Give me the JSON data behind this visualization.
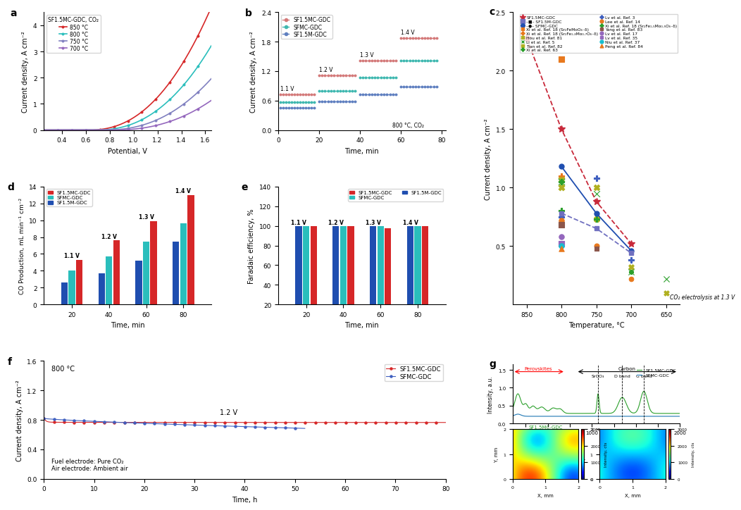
{
  "panel_a": {
    "title": "a",
    "xlabel": "Potential, V",
    "ylabel": "Current density, A cm⁻²",
    "legend_title": "SF1.5MC-GDC, CO₂",
    "temperatures": [
      "850 °C",
      "800 °C",
      "750 °C",
      "700 °C"
    ],
    "colors": [
      "#d62728",
      "#2abebc",
      "#8080c0",
      "#9467bd"
    ],
    "xlim": [
      0.25,
      1.65
    ],
    "ylim": [
      0,
      4.5
    ],
    "xticks": [
      0.4,
      0.6,
      0.8,
      1.0,
      1.2,
      1.4,
      1.6
    ],
    "yticks": [
      0,
      1,
      2,
      3,
      4
    ]
  },
  "panel_b": {
    "title": "b",
    "xlabel": "Time, min",
    "ylabel": "Current density, A cm⁻²",
    "annotation": "800 °C, CO₂",
    "series": [
      "SF1.5MC-GDC",
      "SFMC-GDC",
      "SF1.5M-GDC"
    ],
    "colors": [
      "#d47a7a",
      "#40b8b0",
      "#6080c0"
    ],
    "voltage_labels": [
      "1.1 V",
      "1.2 V",
      "1.3 V",
      "1.4 V"
    ],
    "vals_sf15mc": [
      0.73,
      1.12,
      1.42,
      1.88
    ],
    "vals_sfmc": [
      0.57,
      0.8,
      1.07,
      1.42
    ],
    "vals_sf15m": [
      0.45,
      0.58,
      0.73,
      0.88
    ],
    "xlim": [
      0,
      82
    ],
    "ylim": [
      0,
      2.4
    ],
    "yticks": [
      0.0,
      0.6,
      1.2,
      1.8,
      2.4
    ]
  },
  "panel_c": {
    "title": "c",
    "xlabel": "Temperature, °C",
    "ylabel": "Current density, A cm⁻²",
    "annotation": "CO₂ electrolysis at 1.3 V",
    "xlim": [
      870,
      630
    ],
    "ylim": [
      0.0,
      2.5
    ],
    "xticks": [
      850,
      800,
      750,
      700,
      650
    ],
    "yticks": [
      0.5,
      1.0,
      1.5,
      2.0,
      2.5
    ]
  },
  "panel_d": {
    "title": "d",
    "xlabel": "Time, min",
    "ylabel": "CO Production, mL min⁻¹ cm⁻²",
    "series": [
      "SF1.5MC-GDC",
      "SFMC-GDC",
      "SF1.5M-GDC"
    ],
    "colors": [
      "#d62728",
      "#2abebc",
      "#1f4eb0"
    ],
    "xlim": [
      5,
      95
    ],
    "ylim": [
      0,
      14
    ],
    "yticks": [
      0,
      2,
      4,
      6,
      8,
      10,
      12,
      14
    ],
    "time_groups": [
      20,
      40,
      60,
      80
    ],
    "voltage_labels": [
      "1.1 V",
      "1.2 V",
      "1.3 V",
      "1.4 V"
    ],
    "values": {
      "20": [
        5.3,
        4.0,
        2.6
      ],
      "40": [
        7.6,
        5.7,
        3.7
      ],
      "60": [
        9.9,
        7.5,
        5.2
      ],
      "80": [
        13.0,
        9.6,
        7.5
      ]
    }
  },
  "panel_e": {
    "title": "e",
    "xlabel": "Time, min",
    "ylabel": "Faradaic efficiency, %",
    "series": [
      "SF1.5MC-GDC",
      "SFMC-GDC",
      "SF1.5M-GDC"
    ],
    "colors": [
      "#d62728",
      "#2abebc",
      "#1f4eb0"
    ],
    "xlim": [
      5,
      95
    ],
    "ylim": [
      20,
      140
    ],
    "yticks": [
      20,
      40,
      60,
      80,
      100,
      120,
      140
    ],
    "time_groups": [
      20,
      40,
      60,
      80
    ],
    "voltage_labels": [
      "1.1 V",
      "1.2 V",
      "1.3 V",
      "1.4 V"
    ],
    "values": {
      "20": [
        100.0,
        100.0,
        100.0
      ],
      "40": [
        100.0,
        100.0,
        100.0
      ],
      "60": [
        97.5,
        100.0,
        100.0
      ],
      "80": [
        100.0,
        100.0,
        100.0
      ]
    }
  },
  "panel_f": {
    "title": "f",
    "xlabel": "Time, h",
    "ylabel": "Current density, A cm⁻²",
    "annotation_temp": "800 °C",
    "annotation_volt": "1.2 V",
    "annotation_fuel": "Fuel electrode: Pure CO₂",
    "annotation_air": "Air electrode: Ambient air",
    "series": [
      "SF1.5MC-GDC",
      "SFMC-GDC"
    ],
    "colors": [
      "#d62728",
      "#4060c0"
    ],
    "xlim": [
      0,
      80
    ],
    "ylim": [
      0.0,
      1.6
    ],
    "yticks": [
      0.0,
      0.4,
      0.8,
      1.2,
      1.6
    ],
    "xticks": [
      0,
      10,
      20,
      30,
      40,
      50,
      60,
      70,
      80
    ]
  },
  "panel_g": {
    "title": "g",
    "ylabel_raman": "Intensity, a.u.",
    "series": [
      "SF1.5MC-GDC",
      "SFMC-GDC"
    ],
    "raman_colors": [
      "#2ca02c",
      "#1f77b4"
    ],
    "map_title1": "SF1.5MC-GDC",
    "map_title2": "",
    "colormap": "jet",
    "colorbar_label": "Intensity, cts",
    "colorbar_max": 3000
  }
}
